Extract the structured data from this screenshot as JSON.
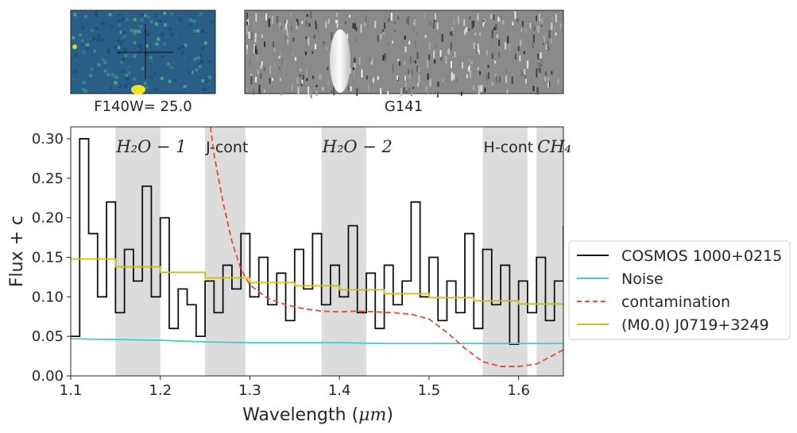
{
  "images": {
    "direct_caption": "F140W= 25.0",
    "grism_caption": "G141"
  },
  "chart_data": {
    "type": "line",
    "xlabel": "Wavelength ($\\mu m$)",
    "xlabel_main": "Wavelength (",
    "xlabel_sym": "μm",
    "xlabel_end": ")",
    "ylabel": "Flux + c",
    "xlim": [
      1.1,
      1.65
    ],
    "ylim": [
      0.0,
      0.315
    ],
    "xticks": [
      1.1,
      1.2,
      1.3,
      1.4,
      1.5,
      1.6
    ],
    "xtick_labels": [
      "1.1",
      "1.2",
      "1.3",
      "1.4",
      "1.5",
      "1.6"
    ],
    "yticks": [
      0.0,
      0.05,
      0.1,
      0.15,
      0.2,
      0.25,
      0.3
    ],
    "ytick_labels": [
      "0.00",
      "0.05",
      "0.10",
      "0.15",
      "0.20",
      "0.25",
      "0.30"
    ],
    "grid": false,
    "legend_position": "right, outside plot",
    "bands": [
      {
        "label": "H_2O-1",
        "text": "H₂O − 1",
        "italic": true,
        "x0": 1.15,
        "x1": 1.2
      },
      {
        "label": "J-cont",
        "text": "J-cont",
        "italic": false,
        "x0": 1.25,
        "x1": 1.295
      },
      {
        "label": "H_2O-2",
        "text": "H₂O − 2",
        "italic": true,
        "x0": 1.38,
        "x1": 1.43
      },
      {
        "label": "H-cont",
        "text": "H-cont",
        "italic": false,
        "x0": 1.56,
        "x1": 1.61
      },
      {
        "label": "CH_4",
        "text": "CH₄",
        "italic": true,
        "x0": 1.62,
        "x1": 1.65
      }
    ],
    "series": [
      {
        "name": "COSMOS 1000+0215",
        "color": "#111111",
        "style": "steps",
        "x": [
          1.1,
          1.11,
          1.12,
          1.13,
          1.14,
          1.15,
          1.16,
          1.17,
          1.18,
          1.19,
          1.2,
          1.21,
          1.22,
          1.23,
          1.24,
          1.25,
          1.26,
          1.27,
          1.28,
          1.29,
          1.3,
          1.31,
          1.32,
          1.33,
          1.34,
          1.35,
          1.36,
          1.37,
          1.38,
          1.39,
          1.4,
          1.41,
          1.42,
          1.43,
          1.44,
          1.45,
          1.46,
          1.47,
          1.48,
          1.49,
          1.5,
          1.51,
          1.52,
          1.53,
          1.54,
          1.55,
          1.56,
          1.57,
          1.58,
          1.59,
          1.6,
          1.61,
          1.62,
          1.63,
          1.64,
          1.65
        ],
        "y": [
          0.05,
          0.3,
          0.18,
          0.1,
          0.22,
          0.08,
          0.16,
          0.12,
          0.24,
          0.1,
          0.2,
          0.06,
          0.11,
          0.09,
          0.05,
          0.12,
          0.08,
          0.14,
          0.11,
          0.18,
          0.1,
          0.15,
          0.09,
          0.13,
          0.07,
          0.16,
          0.11,
          0.18,
          0.09,
          0.14,
          0.1,
          0.19,
          0.08,
          0.13,
          0.06,
          0.14,
          0.09,
          0.12,
          0.22,
          0.1,
          0.15,
          0.07,
          0.12,
          0.08,
          0.18,
          0.06,
          0.16,
          0.09,
          0.14,
          0.04,
          0.12,
          0.08,
          0.15,
          0.07,
          0.12,
          0.19
        ]
      },
      {
        "name": "Noise",
        "color": "#3ecfc4",
        "style": "line",
        "x": [
          1.1,
          1.15,
          1.2,
          1.25,
          1.3,
          1.35,
          1.4,
          1.45,
          1.5,
          1.55,
          1.6,
          1.65
        ],
        "y": [
          0.047,
          0.046,
          0.045,
          0.043,
          0.042,
          0.042,
          0.042,
          0.041,
          0.041,
          0.041,
          0.041,
          0.041
        ]
      },
      {
        "name": "contamination",
        "color": "#e8493c",
        "style": "dashed",
        "x": [
          1.256,
          1.26,
          1.27,
          1.28,
          1.29,
          1.3,
          1.32,
          1.34,
          1.36,
          1.38,
          1.4,
          1.42,
          1.44,
          1.46,
          1.48,
          1.5,
          1.52,
          1.54,
          1.56,
          1.58,
          1.6,
          1.62,
          1.65
        ],
        "y": [
          0.315,
          0.28,
          0.22,
          0.17,
          0.135,
          0.115,
          0.098,
          0.09,
          0.085,
          0.082,
          0.081,
          0.082,
          0.081,
          0.08,
          0.078,
          0.072,
          0.055,
          0.035,
          0.018,
          0.012,
          0.012,
          0.015,
          0.033
        ]
      },
      {
        "name": "(M0.0) J0719+3249",
        "color": "#c9bf18",
        "style": "steps",
        "x": [
          1.1,
          1.15,
          1.2,
          1.25,
          1.3,
          1.35,
          1.4,
          1.45,
          1.5,
          1.55,
          1.6,
          1.65
        ],
        "y": [
          0.148,
          0.138,
          0.131,
          0.124,
          0.118,
          0.114,
          0.109,
          0.104,
          0.099,
          0.095,
          0.091,
          0.087
        ]
      }
    ]
  }
}
